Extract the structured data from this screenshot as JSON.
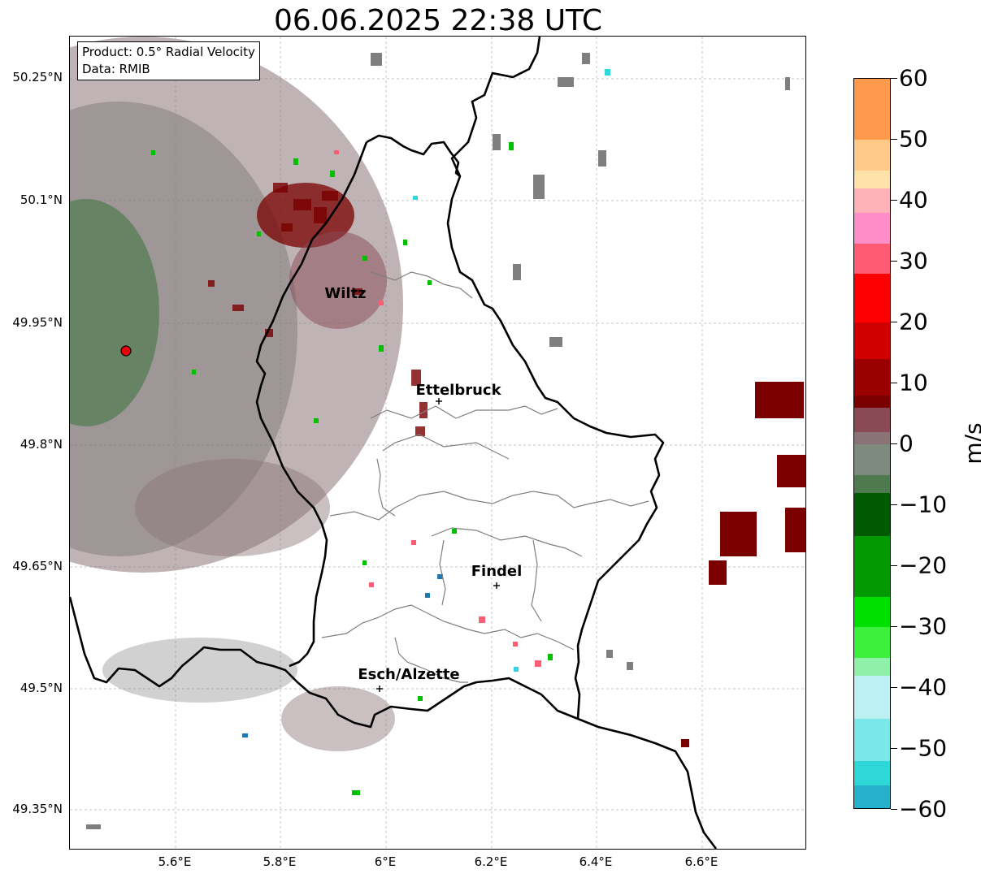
{
  "title": "06.06.2025 22:38 UTC",
  "info": {
    "product": "Product: 0.5° Radial Velocity",
    "source": "Data: RMIB"
  },
  "axes": {
    "lat_labels": [
      "50.25°N",
      "50.1°N",
      "49.95°N",
      "49.8°N",
      "49.65°N",
      "49.5°N",
      "49.35°N"
    ],
    "lon_labels": [
      "5.6°E",
      "5.8°E",
      "6°E",
      "6.2°E",
      "6.4°E",
      "6.6°E"
    ]
  },
  "cities": [
    {
      "name": "Wiltz"
    },
    {
      "name": "Ettelbruck"
    },
    {
      "name": "Findel"
    },
    {
      "name": "Esch/Alzette"
    }
  ],
  "radar_marker": {
    "color": "#e8000b"
  },
  "colorbar": {
    "unit": "m/s",
    "min": -60,
    "max": 60,
    "tick_labels": [
      "60",
      "50",
      "40",
      "30",
      "20",
      "10",
      "0",
      "−10",
      "−20",
      "−30",
      "−40",
      "−50",
      "−60"
    ],
    "stops": [
      {
        "value": 60,
        "color": "#ff9a4d"
      },
      {
        "value": 50,
        "color": "#ffc98a"
      },
      {
        "value": 45,
        "color": "#ffe2a8"
      },
      {
        "value": 42,
        "color": "#ffb3b8"
      },
      {
        "value": 38,
        "color": "#ff8ec8"
      },
      {
        "value": 33,
        "color": "#ff5c73"
      },
      {
        "value": 28,
        "color": "#ff0000"
      },
      {
        "value": 20,
        "color": "#d00000"
      },
      {
        "value": 14,
        "color": "#9a0000"
      },
      {
        "value": 8,
        "color": "#7a0000"
      },
      {
        "value": 6,
        "color": "#8a4a55"
      },
      {
        "value": 2,
        "color": "#8a7276"
      },
      {
        "value": 0,
        "color": "#7f8a7f"
      },
      {
        "value": -5,
        "color": "#4f7a4f"
      },
      {
        "value": -8,
        "color": "#005a00"
      },
      {
        "value": -15,
        "color": "#009a00"
      },
      {
        "value": -25,
        "color": "#00e000"
      },
      {
        "value": -30,
        "color": "#3cf03c"
      },
      {
        "value": -35,
        "color": "#8ff0a8"
      },
      {
        "value": -38,
        "color": "#bdf0f0"
      },
      {
        "value": -45,
        "color": "#7ae8e8"
      },
      {
        "value": -52,
        "color": "#2ed8d8"
      },
      {
        "value": -56,
        "color": "#25b0cc"
      },
      {
        "value": -60,
        "color": "#1f77b4"
      }
    ]
  },
  "colors": {
    "grid": "#b0b0b0",
    "border": "#000000",
    "canton": "#7f7f7f",
    "approach": "#7a0000",
    "receding": "#00c000"
  }
}
